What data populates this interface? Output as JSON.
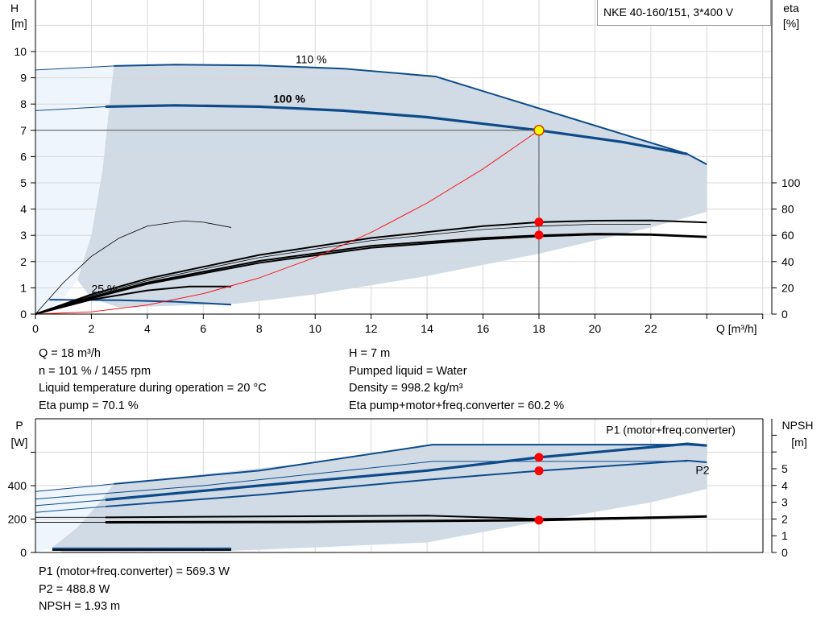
{
  "title": "NKE 40-160/151, 3*400 V",
  "chart_data": [
    {
      "type": "line",
      "name_box": "NKE 40-160/151, 3*400 V",
      "xlabel": "Q [m³/h]",
      "ylabel_left": [
        "H",
        "[m]"
      ],
      "ylabel_right": [
        "eta",
        "[%]"
      ],
      "xlim": [
        0,
        26
      ],
      "xticks": [
        0,
        2,
        4,
        6,
        8,
        10,
        12,
        14,
        16,
        18,
        20,
        22
      ],
      "ylim_left": [
        0,
        12
      ],
      "yticks_left": [
        0,
        1,
        2,
        3,
        4,
        5,
        6,
        7,
        8,
        9,
        10
      ],
      "ylim_right": [
        0,
        240
      ],
      "yticks_right": [
        0,
        20,
        40,
        60,
        80,
        100
      ],
      "grid": true,
      "colors": {
        "curve": "#0d4a8a",
        "shade": "#d0dbe6",
        "shade_light": "#eef5fc",
        "system": "#ff0000",
        "point": "#ff0000",
        "op_point": "#ffff00"
      },
      "curve_labels": [
        {
          "text": "110 %",
          "x": 9.3,
          "y": 9.55,
          "bold": false
        },
        {
          "text": "100 %",
          "x": 8.5,
          "y": 8.05,
          "bold": true
        },
        {
          "text": "25 %",
          "x": 2.0,
          "y": 0.82,
          "bold": false
        }
      ],
      "shade_area": [
        [
          2.8,
          9.45
        ],
        [
          5,
          9.5
        ],
        [
          10,
          9.4
        ],
        [
          14.3,
          9.05
        ],
        [
          23.3,
          6.1
        ],
        [
          24,
          5.7
        ],
        [
          24,
          3.9
        ],
        [
          22,
          3.3
        ],
        [
          18,
          2.3
        ],
        [
          14,
          1.45
        ],
        [
          10,
          0.75
        ],
        [
          7.2,
          0.4
        ],
        [
          3,
          0.25
        ],
        [
          2,
          0.6
        ],
        [
          1.5,
          1.3
        ],
        [
          2.0,
          3.0
        ],
        [
          2.4,
          5.5
        ],
        [
          2.6,
          7.5
        ]
      ],
      "shade_light_area": [
        [
          0,
          9.3
        ],
        [
          2.8,
          9.45
        ],
        [
          2.6,
          7.5
        ],
        [
          2.4,
          5.5
        ],
        [
          2.0,
          3.0
        ],
        [
          1.5,
          1.3
        ],
        [
          0.9,
          0.45
        ],
        [
          0,
          0
        ]
      ],
      "series": [
        {
          "axis": "H",
          "style": "thin-blue",
          "points": [
            [
              0,
              9.3
            ],
            [
              2.8,
              9.45
            ]
          ]
        },
        {
          "axis": "H",
          "style": "blue",
          "points": [
            [
              2.8,
              9.45
            ],
            [
              5,
              9.5
            ],
            [
              8,
              9.47
            ],
            [
              11,
              9.35
            ],
            [
              14.3,
              9.05
            ],
            [
              23.3,
              6.1
            ],
            [
              24,
              5.7
            ]
          ]
        },
        {
          "axis": "H",
          "style": "thin-blue",
          "points": [
            [
              0,
              7.75
            ],
            [
              2.5,
              7.9
            ]
          ]
        },
        {
          "axis": "H",
          "style": "bold-blue",
          "points": [
            [
              2.5,
              7.9
            ],
            [
              5,
              7.95
            ],
            [
              8,
              7.9
            ],
            [
              11,
              7.75
            ],
            [
              14,
              7.5
            ],
            [
              18,
              7.0
            ],
            [
              21,
              6.55
            ],
            [
              23.3,
              6.1
            ]
          ]
        },
        {
          "axis": "H",
          "style": "blue",
          "points": [
            [
              0.5,
              0.55
            ],
            [
              3,
              0.53
            ],
            [
              5,
              0.47
            ],
            [
              7,
              0.36
            ]
          ]
        },
        {
          "axis": "H",
          "style": "thin-black",
          "points": [
            [
              0,
              0
            ],
            [
              1,
              1.2
            ],
            [
              2,
              2.2
            ],
            [
              3,
              2.9
            ],
            [
              4,
              3.35
            ],
            [
              5.3,
              3.55
            ],
            [
              6,
              3.5
            ],
            [
              7,
              3.3
            ]
          ]
        },
        {
          "axis": "H",
          "style": "black",
          "points": [
            [
              0,
              0
            ],
            [
              2,
              0.55
            ],
            [
              4,
              0.9
            ],
            [
              5.5,
              1.05
            ],
            [
              7,
              1.05
            ]
          ]
        },
        {
          "axis": "eta",
          "style": "black",
          "points": [
            [
              0,
              0
            ],
            [
              2,
              15
            ],
            [
              4,
              27
            ],
            [
              8,
              45
            ],
            [
              12,
              58
            ],
            [
              16,
              67
            ],
            [
              18,
              70
            ],
            [
              20,
              71.2
            ],
            [
              22,
              71.3
            ],
            [
              24,
              69.8
            ]
          ]
        },
        {
          "axis": "eta",
          "style": "thin-black",
          "points": [
            [
              0,
              0
            ],
            [
              2,
              14
            ],
            [
              4,
              25.5
            ],
            [
              8,
              43
            ],
            [
              12,
              56
            ],
            [
              16,
              64.5
            ],
            [
              18,
              67
            ],
            [
              20,
              68.5
            ],
            [
              22,
              68.5
            ]
          ]
        },
        {
          "axis": "eta",
          "style": "black",
          "points": [
            [
              0,
              0
            ],
            [
              2,
              13
            ],
            [
              4,
              24
            ],
            [
              8,
              40.5
            ],
            [
              12,
              52
            ],
            [
              16,
              58
            ],
            [
              18,
              60
            ],
            [
              20,
              61.3
            ],
            [
              22,
              60.8
            ],
            [
              24,
              59
            ]
          ]
        },
        {
          "axis": "eta",
          "style": "black",
          "points": [
            [
              0,
              0
            ],
            [
              2,
              12
            ],
            [
              4,
              23
            ],
            [
              8,
              39
            ],
            [
              12,
              50.5
            ],
            [
              16,
              57
            ],
            [
              18,
              59.2
            ],
            [
              20,
              60.6
            ],
            [
              22,
              60.3
            ],
            [
              24,
              58.5
            ]
          ]
        },
        {
          "axis": "H",
          "style": "system",
          "points": [
            [
              0,
              0
            ],
            [
              2,
              0.086
            ],
            [
              4,
              0.346
            ],
            [
              6,
              0.78
            ],
            [
              8,
              1.38
            ],
            [
              10,
              2.16
            ],
            [
              12,
              3.11
            ],
            [
              14,
              4.23
            ],
            [
              16,
              5.53
            ],
            [
              18,
              7.0
            ]
          ]
        }
      ],
      "operating_point": {
        "Q": 18,
        "H": 7
      },
      "eta_points": [
        {
          "Q": 18,
          "eta": 70.1
        },
        {
          "Q": 18,
          "eta": 60.2
        }
      ]
    },
    {
      "type": "line",
      "ylabel_left": [
        "P",
        "[W]"
      ],
      "ylabel_right": [
        "NPSH",
        "[m]"
      ],
      "xlim": [
        0,
        26
      ],
      "ylim_left": [
        0,
        800
      ],
      "yticks_left": [
        0,
        200,
        400
      ],
      "ylim_right": [
        0,
        8
      ],
      "yticks_right": [
        0,
        1,
        2,
        3,
        4,
        5
      ],
      "grid": true,
      "curve_labels": [
        {
          "text": "P1 (motor+freq.converter)",
          "x": 20.4,
          "y": 710
        },
        {
          "text": "P2",
          "x": 23.6,
          "y": 470
        }
      ],
      "shade_area": [
        [
          2.8,
          410
        ],
        [
          10,
          540
        ],
        [
          14.2,
          645
        ],
        [
          23.3,
          645
        ],
        [
          24,
          638
        ],
        [
          24,
          380
        ],
        [
          22,
          300
        ],
        [
          18,
          185
        ],
        [
          14,
          60
        ],
        [
          10,
          30
        ],
        [
          7,
          10
        ],
        [
          1,
          0
        ],
        [
          0.6,
          30
        ],
        [
          1.5,
          150
        ],
        [
          2.3,
          300
        ]
      ],
      "shade_light_area": [
        [
          0,
          365
        ],
        [
          2.8,
          410
        ],
        [
          2.3,
          300
        ],
        [
          1.5,
          150
        ],
        [
          0.6,
          30
        ],
        [
          0,
          0
        ]
      ],
      "series": [
        {
          "axis": "P",
          "style": "thin-blue",
          "points": [
            [
              0,
              365
            ],
            [
              2.8,
              410
            ]
          ]
        },
        {
          "axis": "P",
          "style": "blue",
          "points": [
            [
              2.8,
              410
            ],
            [
              8,
              490
            ],
            [
              14.2,
              645
            ],
            [
              23.3,
              645
            ],
            [
              24,
              638
            ]
          ]
        },
        {
          "axis": "P",
          "style": "thin-blue",
          "points": [
            [
              0,
              320
            ],
            [
              6,
              400
            ],
            [
              14.2,
              545
            ],
            [
              23.3,
              545
            ]
          ]
        },
        {
          "axis": "P",
          "style": "thin-blue",
          "points": [
            [
              0,
              280
            ],
            [
              2.5,
              315
            ]
          ]
        },
        {
          "axis": "P",
          "style": "bold-blue",
          "points": [
            [
              2.5,
              315
            ],
            [
              8,
              400
            ],
            [
              14,
              490
            ],
            [
              18,
              569.3
            ],
            [
              23.3,
              650
            ],
            [
              24,
              640
            ]
          ]
        },
        {
          "axis": "P",
          "style": "thin-blue",
          "points": [
            [
              0,
              240
            ],
            [
              2.5,
              275
            ]
          ]
        },
        {
          "axis": "P",
          "style": "blue",
          "points": [
            [
              2.5,
              275
            ],
            [
              8,
              345
            ],
            [
              14,
              435
            ],
            [
              18,
              488.8
            ],
            [
              23.3,
              550
            ],
            [
              24,
              540
            ]
          ]
        },
        {
          "axis": "P",
          "style": "blue",
          "points": [
            [
              0.6,
              25
            ],
            [
              7,
              25
            ]
          ]
        },
        {
          "axis": "NPSH",
          "style": "thin-black",
          "points": [
            [
              0,
              2.1
            ],
            [
              2.5,
              2.1
            ]
          ]
        },
        {
          "axis": "NPSH",
          "style": "black",
          "points": [
            [
              2.5,
              2.1
            ],
            [
              14,
              2.2
            ],
            [
              18,
              2.0
            ],
            [
              24,
              2.15
            ]
          ]
        },
        {
          "axis": "NPSH",
          "style": "thin-black",
          "points": [
            [
              0,
              1.8
            ],
            [
              2.5,
              1.8
            ]
          ]
        },
        {
          "axis": "NPSH",
          "style": "bold-black",
          "points": [
            [
              2.5,
              1.8
            ],
            [
              10,
              1.83
            ],
            [
              18,
              1.93
            ],
            [
              24,
              2.15
            ]
          ]
        },
        {
          "axis": "NPSH",
          "style": "black",
          "points": [
            [
              0.6,
              0.15
            ],
            [
              7,
              0.15
            ]
          ]
        }
      ],
      "points": [
        {
          "Q": 18,
          "axis": "P",
          "value": 569.3
        },
        {
          "Q": 18,
          "axis": "P",
          "value": 488.8
        },
        {
          "Q": 18,
          "axis": "NPSH",
          "value": 1.93
        }
      ]
    }
  ],
  "info": {
    "left": [
      "Q = 18 m³/h",
      "n = 101 % / 1455 rpm",
      "Liquid temperature during operation = 20 °C",
      "Eta pump = 70.1 %"
    ],
    "right": [
      "H = 7 m",
      "Pumped liquid = Water",
      "Density = 998.2 kg/m³",
      "Eta pump+motor+freq.converter = 60.2 %"
    ],
    "bottom": [
      "P1 (motor+freq.converter) = 569.3 W",
      "P2 = 488.8 W",
      "NPSH = 1.93 m"
    ]
  }
}
